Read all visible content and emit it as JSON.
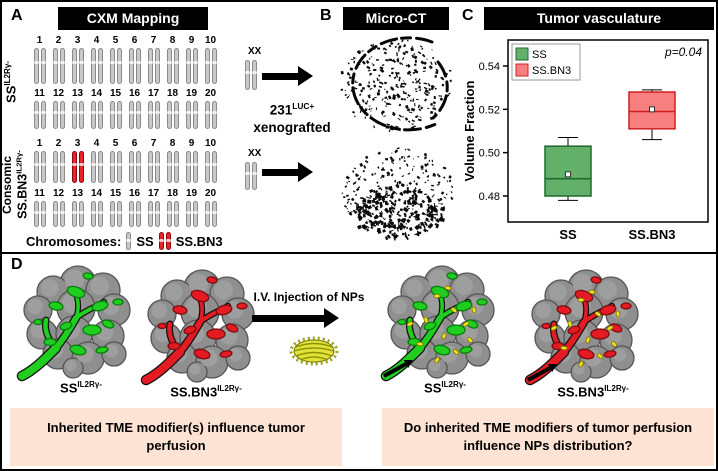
{
  "chart_data": {
    "type": "box",
    "title": "Tumor vasculature",
    "ylabel": "Volume Fraction",
    "ylim": [
      0.468,
      0.552
    ],
    "yticks": [
      0.48,
      0.5,
      0.52,
      0.54
    ],
    "categories": [
      "SS",
      "SS.BN3"
    ],
    "series": [
      {
        "name": "SS",
        "fill": "#63b06a",
        "edge": "#1f6b2d",
        "whisker_low": 0.478,
        "q1": 0.48,
        "median": 0.488,
        "mean": 0.49,
        "q3": 0.503,
        "whisker_high": 0.507
      },
      {
        "name": "SS.BN3",
        "fill": "#f87f7f",
        "edge": "#d02020",
        "whisker_low": 0.506,
        "q1": 0.511,
        "median": 0.519,
        "mean": 0.52,
        "q3": 0.528,
        "whisker_high": 0.529
      }
    ],
    "annotation": "p=0.04",
    "legend_position": "top-left",
    "grid": false
  },
  "panelA": {
    "label": "A",
    "title": "CXM Mapping",
    "row1_numbers": [
      "1",
      "2",
      "3",
      "4",
      "5",
      "6",
      "7",
      "8",
      "9",
      "10"
    ],
    "row2_numbers": [
      "11",
      "12",
      "13",
      "14",
      "15",
      "16",
      "17",
      "18",
      "19",
      "20"
    ],
    "xx_label": "XX",
    "group1_label": {
      "main": "SS",
      "sup": "IL2Rγ-"
    },
    "group2_line1": "Consomic",
    "group2_label": {
      "main": "SS.BN3",
      "sup": "IL2Rγ-"
    },
    "red_chromosome_number": "3",
    "legend": {
      "title": "Chromosomes:",
      "ss": "SS",
      "ssbn3": "SS.BN3"
    },
    "colors": {
      "chromosome_gray": "#c9c9c9",
      "chromosome_gray_edge": "#8a8a8a",
      "chromosome_red": "#e8242b",
      "chromosome_red_edge": "#8d0b10"
    }
  },
  "arrows": {
    "line1_main": "231",
    "line1_sup": "LUC+",
    "line2": "xenografted"
  },
  "panelB": {
    "label": "B",
    "title": "Micro-CT"
  },
  "panelC": {
    "label": "C",
    "title": "Tumor vasculature"
  },
  "panelD": {
    "label": "D",
    "iv_text": "I.V. Injection of NPs",
    "tumor1": {
      "main": "SS",
      "sup": "IL2Rγ-"
    },
    "tumor2": {
      "main": "SS.BN3",
      "sup": "IL2Rγ-"
    },
    "tumor3": {
      "main": "SS",
      "sup": "IL2Rγ-"
    },
    "tumor4": {
      "main": "SS.BN3",
      "sup": "IL2Rγ-"
    },
    "caption_left": "Inherited TME modifier(s) influence tumor perfusion",
    "caption_right": "Do inherited TME modifiers of tumor perfusion influence NPs distribution?",
    "colors": {
      "vessel_green": "#1fce1f",
      "vessel_green_dark": "#0a7a0a",
      "vessel_red": "#e41b23",
      "vessel_red_dark": "#7a0d10",
      "np_yellow": "#f2e51c",
      "np_edge": "#7c7400",
      "tumor_gray": "#8f8f8f",
      "caption_bg": "#fce3d4"
    }
  }
}
